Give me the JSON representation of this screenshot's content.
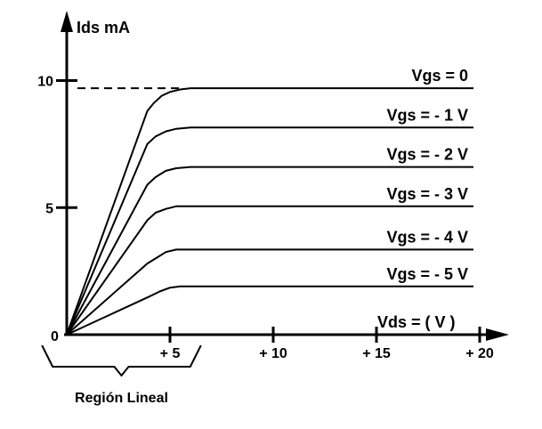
{
  "chart_data": {
    "type": "line",
    "title": "",
    "ylabel": "Ids mA",
    "xlabel": "Vds = ( V )",
    "xlim": [
      0,
      20
    ],
    "ylim": [
      0,
      10
    ],
    "origin_label": "0",
    "x_ticks": [
      {
        "value": 5,
        "label": "+ 5"
      },
      {
        "value": 10,
        "label": "+ 10"
      },
      {
        "value": 15,
        "label": "+ 15"
      },
      {
        "value": 20,
        "label": "+ 20"
      }
    ],
    "y_ticks": [
      {
        "value": 5,
        "label": "5"
      },
      {
        "value": 10,
        "label": "10"
      }
    ],
    "series": [
      {
        "name": "Vgs = 0",
        "x": [
          0,
          3.9,
          4.2,
          4.6,
          5.0,
          5.5,
          6.0,
          6.5,
          19.7
        ],
        "y": [
          0,
          8.8,
          9.1,
          9.4,
          9.55,
          9.65,
          9.7,
          9.7,
          9.7
        ]
      },
      {
        "name": "Vgs = - 1 V",
        "x": [
          0,
          3.9,
          4.3,
          4.8,
          5.3,
          6.0,
          19.7
        ],
        "y": [
          0,
          7.5,
          7.8,
          8.0,
          8.1,
          8.15,
          8.15
        ]
      },
      {
        "name": "Vgs = - 2 V",
        "x": [
          0,
          3.9,
          4.3,
          4.8,
          5.3,
          6.0,
          19.7
        ],
        "y": [
          0,
          5.9,
          6.2,
          6.45,
          6.55,
          6.6,
          6.6
        ]
      },
      {
        "name": "Vgs = - 3 V",
        "x": [
          0,
          3.9,
          4.3,
          4.8,
          5.3,
          6.0,
          19.7
        ],
        "y": [
          0,
          4.5,
          4.8,
          4.95,
          5.05,
          5.05,
          5.05
        ]
      },
      {
        "name": "Vgs = - 4 V",
        "x": [
          0,
          3.9,
          4.3,
          4.8,
          5.3,
          6.0,
          19.7
        ],
        "y": [
          0,
          2.8,
          3.0,
          3.25,
          3.35,
          3.35,
          3.35
        ]
      },
      {
        "name": "Vgs = - 5 V",
        "x": [
          0,
          4.0,
          4.5,
          5.0,
          5.5,
          6.0,
          19.7
        ],
        "y": [
          0,
          1.5,
          1.7,
          1.85,
          1.9,
          1.9,
          1.9
        ]
      }
    ],
    "reference_line": {
      "style": "dashed",
      "y": 9.7,
      "x": [
        0,
        5.5
      ]
    },
    "annotations": [
      {
        "text": "Región Lineal",
        "x_range": [
          -1.2,
          6.5
        ]
      }
    ],
    "grid": false,
    "legend": "inline labels at right end of each curve"
  }
}
